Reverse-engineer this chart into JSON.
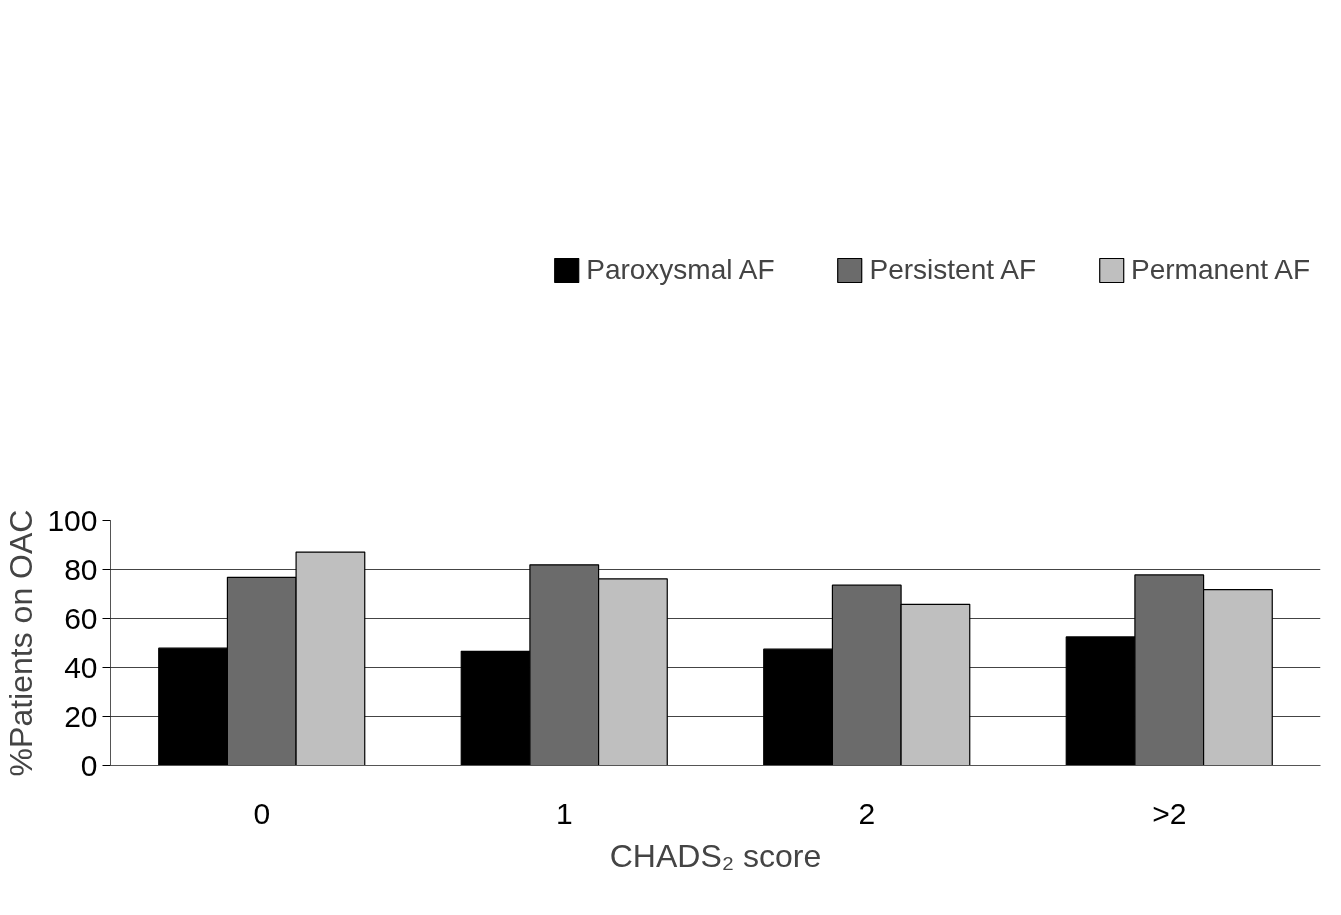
{
  "chart_data": {
    "type": "bar",
    "xlabel": "CHADS₂ score",
    "ylabel": "%Patients on OAC",
    "categories": [
      "0",
      "1",
      "2",
      ">2"
    ],
    "series": [
      {
        "name": "Paroxysmal AF",
        "color": "#000000",
        "values": [
          47.9,
          46.6,
          47.5,
          52.5
        ]
      },
      {
        "name": "Persistent AF",
        "color": "#6b6b6b",
        "values": [
          76.8,
          81.9,
          73.6,
          77.8
        ]
      },
      {
        "name": "Permanent AF",
        "color": "#bfbfbf",
        "values": [
          87.1,
          76.2,
          65.8,
          71.8
        ]
      }
    ],
    "ylim": [
      0,
      100
    ],
    "yticks": [
      0,
      20,
      40,
      60,
      80,
      100
    ],
    "grid": "y",
    "legend": "top"
  }
}
